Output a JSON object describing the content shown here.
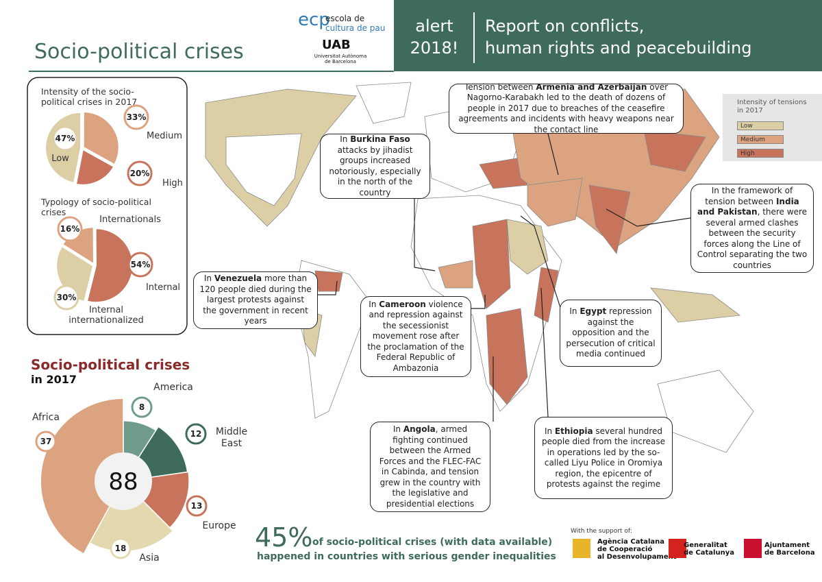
{
  "header": {
    "logo_mark": "ecp",
    "logo_lines": [
      "escola de",
      "cultura de pau"
    ],
    "university_mark": "UAB",
    "university_name": [
      "Universitat Autònoma",
      "de Barcelona"
    ],
    "alert": [
      "alert",
      "2018!"
    ],
    "report": [
      "Report on conflicts,",
      "human rights and peacebuilding"
    ]
  },
  "title": "Socio-political crises",
  "chart_data": [
    {
      "type": "pie",
      "title": "Intensity of the socio-political crises in 2017",
      "categories": [
        "Low",
        "Medium",
        "High"
      ],
      "values": [
        47,
        33,
        20
      ],
      "value_labels": [
        "47%",
        "33%",
        "20%"
      ],
      "colors": [
        "#dccfa6",
        "#dca380",
        "#c8735b"
      ]
    },
    {
      "type": "pie",
      "title": "Typology of socio-political crises",
      "categories": [
        "Internationals",
        "Internal",
        "Internal internationalized"
      ],
      "values": [
        16,
        54,
        30
      ],
      "value_labels": [
        "16%",
        "54%",
        "30%"
      ],
      "colors": [
        "#dca380",
        "#c8735b",
        "#dccfa6"
      ]
    },
    {
      "type": "polar",
      "title": "Socio-political crises",
      "subtitle": "in 2017",
      "categories": [
        "America",
        "Middle East",
        "Europe",
        "Asia",
        "Africa"
      ],
      "values": [
        8,
        12,
        13,
        18,
        37
      ],
      "total": 88,
      "colors": [
        "#6f9c8a",
        "#3f6b5a",
        "#c8735b",
        "#e4d8ae",
        "#dca380"
      ]
    }
  ],
  "map": {
    "legend": {
      "title": "Intensity of tensions in 2017",
      "items": [
        "Low",
        "Medium",
        "High"
      ],
      "colors": [
        "#dccfa6",
        "#dca380",
        "#c8735b"
      ]
    },
    "callouts": [
      {
        "lead": "Tension between",
        "bold": "Armenia and Azerbaijan",
        "text": "over Nagorno-Karabakh led to the death of dozens of people in 2017 due to breaches of the ceasefire agreements and incidents with heavy weapons near the contact line"
      },
      {
        "lead": "In",
        "bold": "Burkina Faso",
        "text": "attacks by jihadist groups increased notoriously, especially in the north of the country"
      },
      {
        "lead": "In the framework of tension between",
        "bold": "India and Pakistan",
        "text": ", there were several armed clashes between the security forces along the Line of Control separating the two countries"
      },
      {
        "lead": "In",
        "bold": "Venezuela",
        "text": "more than 120 people died during the largest protests against the government in recent years"
      },
      {
        "lead": "In",
        "bold": "Cameroon",
        "text": "violence and repression against the secessionist movement rose after the proclamation of the Federal Republic of Ambazonia"
      },
      {
        "lead": "In",
        "bold": "Egypt",
        "text": "repression against the opposition and the persecution of critical media continued"
      },
      {
        "lead": "In",
        "bold": "Angola",
        "text": ", armed fighting continued between the Armed Forces and the FLEC-FAC in Cabinda, and tension grew in the country with the legislative and presidential elections"
      },
      {
        "lead": "In",
        "bold": "Ethiopia",
        "text": "several hundred people died from the increase in operations led by the so-called Liyu Police in Oromiya region, the epicentre of protests against the regime"
      }
    ]
  },
  "footer": {
    "stat": "45%",
    "stat_text": "of socio-political crises (with data available)",
    "stat_text_2": "happened in countries with serious gender inequalities",
    "support": "With the support of:",
    "sponsors": [
      [
        "Agència Catalana",
        "de Cooperació",
        "al Desenvolupament"
      ],
      [
        "Generalitat",
        "de Catalunya"
      ],
      [
        "Ajuntament",
        "de Barcelona"
      ]
    ]
  }
}
